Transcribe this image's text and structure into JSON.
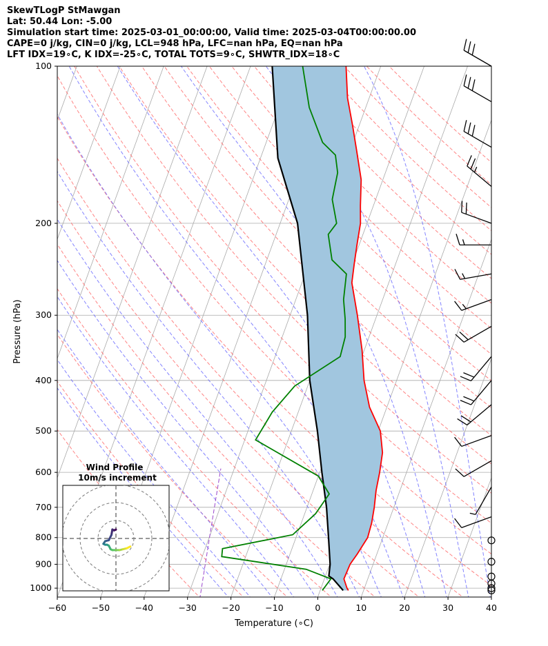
{
  "header": {
    "line1": "SkewTLogP StMawgan",
    "line2": "Lat: 50.44   Lon: -5.00",
    "line3": "Simulation start time: 2025-03-01_00:00:00, Valid time: 2025-03-04T00:00:00.00",
    "line4": "CAPE=0 j/kg, CIN=0 j/kg, LCL=948 hPa, LFC=nan hPa, EQ=nan hPa",
    "line5": "LFT IDX=19∘C, K IDX=-25∘C, TOTAL TOTS=9∘C, SHWTR_IDX=18∘C"
  },
  "colors": {
    "temperature": "#ff0000",
    "dewpoint": "#008000",
    "parcel": "#000000",
    "shading": "#a1c6df",
    "dry_adiabat": "#ff6464",
    "moist_adiabat": "#6464ff",
    "mixing_ratio": "#9944cc",
    "isotherm": "#a9a9a9"
  },
  "chart_data": [
    {
      "type": "line",
      "subtype": "skew-t log-p",
      "xlabel": "Temperature (∘C)",
      "ylabel": "Pressure (hPa)",
      "xlim": [
        -60,
        40
      ],
      "ylim": [
        1040,
        100
      ],
      "yscale": "log",
      "grid": true,
      "x_ticks": [
        "−60",
        "−50",
        "−40",
        "−30",
        "−20",
        "−10",
        "0",
        "10",
        "20",
        "30",
        "40"
      ],
      "y_ticks": [
        "100",
        "200",
        "300",
        "400",
        "500",
        "600",
        "700",
        "800",
        "900",
        "1000"
      ],
      "series": [
        {
          "role": "temperature",
          "points": [
            [
              6.5,
              1010
            ],
            [
              6,
              1000
            ],
            [
              4.5,
              960
            ],
            [
              4.7,
              900
            ],
            [
              5.5,
              860
            ],
            [
              6.5,
              800
            ],
            [
              6.2,
              750
            ],
            [
              5.5,
              700
            ],
            [
              4.5,
              650
            ],
            [
              3.8,
              600
            ],
            [
              2.8,
              550
            ],
            [
              0.5,
              500
            ],
            [
              -4,
              450
            ],
            [
              -7.5,
              400
            ],
            [
              -10.5,
              350
            ],
            [
              -14.5,
              300
            ],
            [
              -18.5,
              260
            ],
            [
              -19.5,
              240
            ],
            [
              -20.5,
              220
            ],
            [
              -21.5,
              200
            ],
            [
              -23,
              185
            ],
            [
              -25,
              165
            ],
            [
              -28.5,
              145
            ],
            [
              -31.5,
              130
            ],
            [
              -35,
              115
            ],
            [
              -38,
              100
            ]
          ]
        },
        {
          "role": "dewpoint",
          "points": [
            [
              0.5,
              1010
            ],
            [
              1.5,
              960
            ],
            [
              -5,
              920
            ],
            [
              -25.5,
              870
            ],
            [
              -26,
              840
            ],
            [
              -11,
              790
            ],
            [
              -7.5,
              720
            ],
            [
              -6,
              660
            ],
            [
              -10,
              610
            ],
            [
              -27.5,
              520
            ],
            [
              -26,
              460
            ],
            [
              -23,
              410
            ],
            [
              -15,
              360
            ],
            [
              -15.5,
              330
            ],
            [
              -17,
              305
            ],
            [
              -19,
              280
            ],
            [
              -20.5,
              250
            ],
            [
              -25,
              235
            ],
            [
              -28,
              210
            ],
            [
              -27,
              200
            ],
            [
              -30,
              180
            ],
            [
              -31,
              160
            ],
            [
              -33,
              148
            ],
            [
              -37,
              140
            ],
            [
              -43,
              120
            ],
            [
              -48,
              100
            ]
          ]
        },
        {
          "role": "parcel",
          "points": [
            [
              5.3,
              1010
            ],
            [
              2,
              960
            ],
            [
              0.8,
              948
            ],
            [
              0.1,
              900
            ],
            [
              -2.5,
              800
            ],
            [
              -5.5,
              700
            ],
            [
              -9.5,
              600
            ],
            [
              -14,
              500
            ],
            [
              -20,
              400
            ],
            [
              -26,
              300
            ],
            [
              -36,
              200
            ],
            [
              -46,
              150
            ],
            [
              -55,
              100
            ]
          ]
        }
      ],
      "wind_barbs_y": [
        100,
        117,
        143,
        170,
        200,
        220,
        250,
        280,
        315,
        360,
        400,
        445,
        510,
        570,
        640,
        730,
        810,
        890,
        950,
        980,
        1000,
        1010
      ],
      "wind_barbs_speed_kt": [
        30,
        30,
        30,
        25,
        20,
        15,
        15,
        15,
        20,
        20,
        20,
        20,
        10,
        10,
        5,
        10,
        0,
        0,
        0,
        0,
        0,
        0
      ],
      "wind_barbs_dir_deg": [
        300,
        300,
        300,
        310,
        290,
        270,
        260,
        250,
        240,
        220,
        220,
        230,
        250,
        240,
        210,
        250,
        0,
        0,
        0,
        0,
        0,
        0
      ]
    },
    {
      "type": "scatter",
      "subtype": "hodograph",
      "title": "Wind Profile",
      "subtitle": "10m/s increment",
      "rings_ms": [
        10,
        20,
        30
      ],
      "u": [
        0,
        -1,
        -2,
        -2.5,
        -4,
        -6,
        -7,
        -6,
        -5,
        -4,
        -3,
        -2,
        0,
        2,
        4,
        6,
        8
      ],
      "v": [
        5,
        4.5,
        5,
        2,
        -1,
        -1.5,
        -3,
        -3.5,
        -3.5,
        -4,
        -6,
        -6.5,
        -6.5,
        -6.5,
        -6,
        -5.5,
        -4.5
      ],
      "colormap": "viridis"
    }
  ]
}
